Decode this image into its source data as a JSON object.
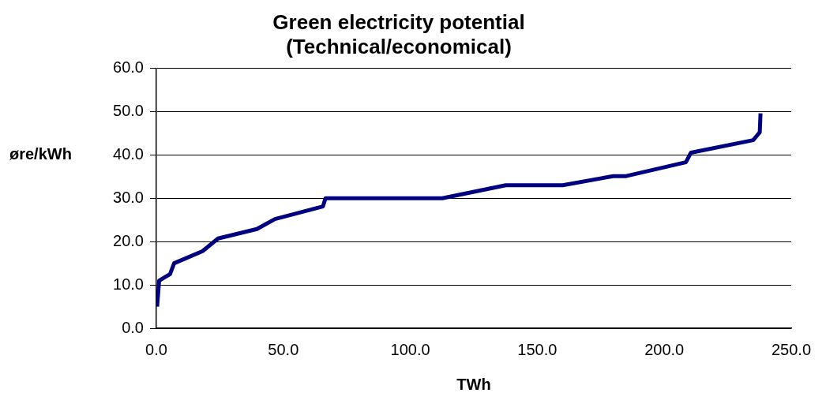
{
  "chart_data": {
    "type": "line",
    "title": "Green electricity potential\n(Technical/economical)",
    "xlabel": "TWh",
    "ylabel": "øre/kWh",
    "x": [
      0.3,
      1.1,
      5.4,
      7.0,
      18.2,
      24.3,
      39.6,
      46.7,
      65.6,
      66.6,
      112.6,
      137.6,
      160,
      179.9,
      185,
      208.5,
      210.5,
      235,
      237.6,
      237.9
    ],
    "series": [
      {
        "color": "#000080",
        "values": [
          5.0,
          11.0,
          12.5,
          15.0,
          17.8,
          20.7,
          22.9,
          25.2,
          28.1,
          30.0,
          30.0,
          33.0,
          33.0,
          35.1,
          35.1,
          38.3,
          40.5,
          43.4,
          45.2,
          49.6
        ]
      }
    ],
    "xlim": [
      0,
      250
    ],
    "xticks": [
      {
        "value": 0,
        "label": "0.0"
      },
      {
        "value": 50,
        "label": "50.0"
      },
      {
        "value": 100,
        "label": "100.0"
      },
      {
        "value": 150,
        "label": "150.0"
      },
      {
        "value": 200,
        "label": "200.0"
      },
      {
        "value": 250,
        "label": "250.0"
      }
    ],
    "ylim": [
      0,
      60
    ],
    "yticks": [
      {
        "value": 0,
        "label": "0.0"
      },
      {
        "value": 10,
        "label": "10.0"
      },
      {
        "value": 20,
        "label": "20.0"
      },
      {
        "value": 30,
        "label": "30.0"
      },
      {
        "value": 40,
        "label": "40.0"
      },
      {
        "value": 50,
        "label": "50.0"
      },
      {
        "value": 60,
        "label": "60.0"
      }
    ],
    "grid": "y",
    "legend": false,
    "marker": "none",
    "line_style": "solid"
  }
}
